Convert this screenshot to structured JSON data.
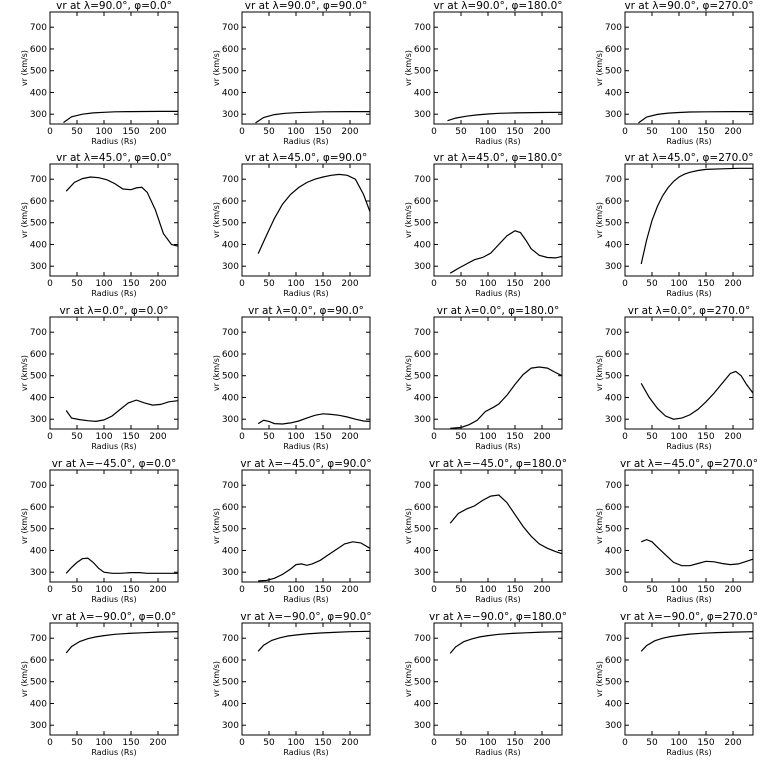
{
  "chart_data": [
    {
      "type": "line",
      "title": "vr at λ=90.0°, φ=0.0°",
      "xlabel": "Radius (Rs)",
      "ylabel": "vr (km/s)",
      "xlim": [
        0,
        237
      ],
      "ylim": [
        255,
        770
      ],
      "xticks": [
        0,
        50,
        100,
        150,
        200
      ],
      "yticks": [
        300,
        400,
        500,
        600,
        700
      ],
      "x": [
        25,
        40,
        60,
        80,
        100,
        120,
        150,
        200,
        237
      ],
      "y": [
        262,
        288,
        300,
        306,
        309,
        311,
        312,
        313,
        313
      ]
    },
    {
      "type": "line",
      "title": "vr at λ=90.0°, φ=90.0°",
      "xlabel": "Radius (Rs)",
      "ylabel": "vr (km/s)",
      "xlim": [
        0,
        237
      ],
      "ylim": [
        255,
        770
      ],
      "xticks": [
        0,
        50,
        100,
        150,
        200
      ],
      "yticks": [
        300,
        400,
        500,
        600,
        700
      ],
      "x": [
        25,
        40,
        60,
        80,
        100,
        120,
        150,
        200,
        237
      ],
      "y": [
        260,
        285,
        298,
        304,
        307,
        309,
        311,
        312,
        312
      ]
    },
    {
      "type": "line",
      "title": "vr at λ=90.0°, φ=180.0°",
      "xlabel": "Radius (Rs)",
      "ylabel": "vr (km/s)",
      "xlim": [
        0,
        237
      ],
      "ylim": [
        255,
        770
      ],
      "xticks": [
        0,
        50,
        100,
        150,
        200
      ],
      "yticks": [
        300,
        400,
        500,
        600,
        700
      ],
      "x": [
        25,
        40,
        60,
        80,
        100,
        120,
        150,
        200,
        237
      ],
      "y": [
        270,
        282,
        291,
        297,
        301,
        304,
        306,
        308,
        309
      ]
    },
    {
      "type": "line",
      "title": "vr at λ=90.0°, φ=270.0°",
      "xlabel": "Radius (Rs)",
      "ylabel": "vr (km/s)",
      "xlim": [
        0,
        237
      ],
      "ylim": [
        255,
        770
      ],
      "xticks": [
        0,
        50,
        100,
        150,
        200
      ],
      "yticks": [
        300,
        400,
        500,
        600,
        700
      ],
      "x": [
        25,
        40,
        60,
        80,
        100,
        120,
        150,
        200,
        237
      ],
      "y": [
        260,
        287,
        299,
        305,
        308,
        310,
        311,
        312,
        312
      ]
    },
    {
      "type": "line",
      "title": "vr at λ=45.0°, φ=0.0°",
      "xlabel": "Radius (Rs)",
      "ylabel": "vr (km/s)",
      "xlim": [
        0,
        237
      ],
      "ylim": [
        255,
        770
      ],
      "xticks": [
        0,
        50,
        100,
        150,
        200
      ],
      "yticks": [
        300,
        400,
        500,
        600,
        700
      ],
      "x": [
        30,
        45,
        60,
        75,
        90,
        105,
        120,
        135,
        150,
        160,
        170,
        180,
        195,
        210,
        225,
        237
      ],
      "y": [
        645,
        685,
        703,
        710,
        707,
        698,
        680,
        655,
        652,
        660,
        663,
        640,
        560,
        450,
        400,
        392
      ]
    },
    {
      "type": "line",
      "title": "vr at λ=45.0°, φ=90.0°",
      "xlabel": "Radius (Rs)",
      "ylabel": "vr (km/s)",
      "xlim": [
        0,
        237
      ],
      "ylim": [
        255,
        770
      ],
      "xticks": [
        0,
        50,
        100,
        150,
        200
      ],
      "yticks": [
        300,
        400,
        500,
        600,
        700
      ],
      "x": [
        30,
        45,
        60,
        75,
        90,
        105,
        120,
        135,
        150,
        165,
        180,
        195,
        210,
        225,
        237
      ],
      "y": [
        358,
        440,
        520,
        585,
        630,
        662,
        685,
        700,
        710,
        718,
        722,
        718,
        700,
        630,
        550
      ]
    },
    {
      "type": "line",
      "title": "vr at λ=45.0°, φ=180.0°",
      "xlabel": "Radius (Rs)",
      "ylabel": "vr (km/s)",
      "xlim": [
        0,
        237
      ],
      "ylim": [
        255,
        770
      ],
      "xticks": [
        0,
        50,
        100,
        150,
        200
      ],
      "yticks": [
        300,
        400,
        500,
        600,
        700
      ],
      "x": [
        30,
        45,
        60,
        75,
        90,
        105,
        120,
        135,
        150,
        160,
        170,
        180,
        195,
        210,
        225,
        237
      ],
      "y": [
        268,
        290,
        310,
        330,
        340,
        360,
        400,
        440,
        463,
        455,
        420,
        380,
        350,
        340,
        338,
        345
      ]
    },
    {
      "type": "line",
      "title": "vr at λ=45.0°, φ=270.0°",
      "xlabel": "Radius (Rs)",
      "ylabel": "vr (km/s)",
      "xlim": [
        0,
        237
      ],
      "ylim": [
        255,
        770
      ],
      "xticks": [
        0,
        50,
        100,
        150,
        200
      ],
      "yticks": [
        300,
        400,
        500,
        600,
        700
      ],
      "x": [
        30,
        40,
        50,
        60,
        70,
        80,
        90,
        100,
        110,
        120,
        135,
        150,
        180,
        210,
        237
      ],
      "y": [
        310,
        420,
        510,
        575,
        625,
        662,
        690,
        710,
        723,
        732,
        740,
        745,
        748,
        750,
        750
      ]
    },
    {
      "type": "line",
      "title": "vr at λ=0.0°, φ=0.0°",
      "xlabel": "Radius (Rs)",
      "ylabel": "vr (km/s)",
      "xlim": [
        0,
        237
      ],
      "ylim": [
        255,
        770
      ],
      "xticks": [
        0,
        50,
        100,
        150,
        200
      ],
      "yticks": [
        300,
        400,
        500,
        600,
        700
      ],
      "x": [
        30,
        40,
        55,
        70,
        85,
        100,
        115,
        130,
        145,
        160,
        175,
        190,
        205,
        220,
        237
      ],
      "y": [
        340,
        305,
        298,
        293,
        290,
        297,
        315,
        345,
        375,
        388,
        375,
        365,
        368,
        380,
        385
      ]
    },
    {
      "type": "line",
      "title": "vr at λ=0.0°, φ=90.0°",
      "xlabel": "Radius (Rs)",
      "ylabel": "vr (km/s)",
      "xlim": [
        0,
        237
      ],
      "ylim": [
        255,
        770
      ],
      "xticks": [
        0,
        50,
        100,
        150,
        200
      ],
      "yticks": [
        300,
        400,
        500,
        600,
        700
      ],
      "x": [
        30,
        40,
        50,
        60,
        75,
        90,
        105,
        120,
        135,
        150,
        165,
        180,
        195,
        210,
        225,
        237
      ],
      "y": [
        280,
        295,
        290,
        280,
        278,
        283,
        292,
        305,
        318,
        325,
        322,
        318,
        310,
        300,
        292,
        290
      ]
    },
    {
      "type": "line",
      "title": "vr at λ=0.0°, φ=180.0°",
      "xlabel": "Radius (Rs)",
      "ylabel": "vr (km/s)",
      "xlim": [
        0,
        237
      ],
      "ylim": [
        255,
        770
      ],
      "xticks": [
        0,
        50,
        100,
        150,
        200
      ],
      "yticks": [
        300,
        400,
        500,
        600,
        700
      ],
      "x": [
        30,
        50,
        65,
        80,
        95,
        110,
        120,
        135,
        150,
        165,
        180,
        195,
        210,
        225,
        237
      ],
      "y": [
        258,
        262,
        275,
        295,
        335,
        355,
        370,
        410,
        460,
        505,
        535,
        540,
        535,
        515,
        500
      ]
    },
    {
      "type": "line",
      "title": "vr at λ=0.0°, φ=270.0°",
      "xlabel": "Radius (Rs)",
      "ylabel": "vr (km/s)",
      "xlim": [
        0,
        237
      ],
      "ylim": [
        255,
        770
      ],
      "xticks": [
        0,
        50,
        100,
        150,
        200
      ],
      "yticks": [
        300,
        400,
        500,
        600,
        700
      ],
      "x": [
        30,
        45,
        60,
        75,
        90,
        105,
        120,
        135,
        150,
        165,
        180,
        195,
        205,
        215,
        225,
        237
      ],
      "y": [
        465,
        400,
        350,
        315,
        300,
        305,
        320,
        345,
        380,
        420,
        465,
        510,
        520,
        500,
        460,
        420
      ]
    },
    {
      "type": "line",
      "title": "vr at λ=−45.0°, φ=0.0°",
      "xlabel": "Radius (Rs)",
      "ylabel": "vr (km/s)",
      "xlim": [
        0,
        237
      ],
      "ylim": [
        255,
        770
      ],
      "xticks": [
        0,
        50,
        100,
        150,
        200
      ],
      "yticks": [
        300,
        400,
        500,
        600,
        700
      ],
      "x": [
        30,
        40,
        50,
        60,
        70,
        80,
        90,
        100,
        115,
        130,
        150,
        165,
        180,
        200,
        220,
        237
      ],
      "y": [
        295,
        322,
        345,
        362,
        365,
        345,
        318,
        300,
        295,
        295,
        298,
        298,
        295,
        295,
        295,
        295
      ]
    },
    {
      "type": "line",
      "title": "vr at λ=−45.0°, φ=90.0°",
      "xlabel": "Radius (Rs)",
      "ylabel": "vr (km/s)",
      "xlim": [
        0,
        237
      ],
      "ylim": [
        255,
        770
      ],
      "xticks": [
        0,
        50,
        100,
        150,
        200
      ],
      "yticks": [
        300,
        400,
        500,
        600,
        700
      ],
      "x": [
        30,
        45,
        60,
        75,
        90,
        100,
        110,
        120,
        130,
        145,
        160,
        175,
        190,
        205,
        220,
        237
      ],
      "y": [
        260,
        262,
        272,
        290,
        315,
        335,
        338,
        332,
        338,
        355,
        380,
        405,
        430,
        440,
        435,
        410
      ]
    },
    {
      "type": "line",
      "title": "vr at λ=−45.0°, φ=180.0°",
      "xlabel": "Radius (Rs)",
      "ylabel": "vr (km/s)",
      "xlim": [
        0,
        237
      ],
      "ylim": [
        255,
        770
      ],
      "xticks": [
        0,
        50,
        100,
        150,
        200
      ],
      "yticks": [
        300,
        400,
        500,
        600,
        700
      ],
      "x": [
        30,
        45,
        60,
        75,
        90,
        105,
        120,
        135,
        150,
        165,
        180,
        195,
        210,
        225,
        237
      ],
      "y": [
        525,
        570,
        590,
        605,
        630,
        650,
        655,
        620,
        565,
        510,
        465,
        430,
        410,
        395,
        385
      ]
    },
    {
      "type": "line",
      "title": "vr at λ=−45.0°, φ=270.0°",
      "xlabel": "Radius (Rs)",
      "ylabel": "vr (km/s)",
      "xlim": [
        0,
        237
      ],
      "ylim": [
        255,
        770
      ],
      "xticks": [
        0,
        50,
        100,
        150,
        200
      ],
      "yticks": [
        300,
        400,
        500,
        600,
        700
      ],
      "x": [
        30,
        40,
        50,
        60,
        75,
        90,
        105,
        120,
        135,
        150,
        165,
        180,
        195,
        210,
        225,
        237
      ],
      "y": [
        440,
        450,
        440,
        415,
        380,
        345,
        330,
        330,
        340,
        350,
        348,
        340,
        335,
        338,
        350,
        360
      ]
    },
    {
      "type": "line",
      "title": "vr at λ=−90.0°, φ=0.0°",
      "xlabel": "Radius (Rs)",
      "ylabel": "vr (km/s)",
      "xlim": [
        0,
        237
      ],
      "ylim": [
        255,
        770
      ],
      "xticks": [
        0,
        50,
        100,
        150,
        200
      ],
      "yticks": [
        300,
        400,
        500,
        600,
        700
      ],
      "x": [
        30,
        40,
        55,
        70,
        85,
        100,
        120,
        145,
        170,
        200,
        237
      ],
      "y": [
        632,
        662,
        685,
        698,
        706,
        712,
        718,
        722,
        725,
        728,
        730
      ]
    },
    {
      "type": "line",
      "title": "vr at λ=−90.0°, φ=90.0°",
      "xlabel": "Radius (Rs)",
      "ylabel": "vr (km/s)",
      "xlim": [
        0,
        237
      ],
      "ylim": [
        255,
        770
      ],
      "xticks": [
        0,
        50,
        100,
        150,
        200
      ],
      "yticks": [
        300,
        400,
        500,
        600,
        700
      ],
      "x": [
        30,
        40,
        55,
        70,
        85,
        100,
        120,
        145,
        170,
        200,
        237
      ],
      "y": [
        640,
        668,
        690,
        702,
        710,
        715,
        720,
        724,
        727,
        730,
        732
      ]
    },
    {
      "type": "line",
      "title": "vr at λ=−90.0°, φ=180.0°",
      "xlabel": "Radius (Rs)",
      "ylabel": "vr (km/s)",
      "xlim": [
        0,
        237
      ],
      "ylim": [
        255,
        770
      ],
      "xticks": [
        0,
        50,
        100,
        150,
        200
      ],
      "yticks": [
        300,
        400,
        500,
        600,
        700
      ],
      "x": [
        30,
        40,
        55,
        70,
        85,
        100,
        120,
        145,
        170,
        200,
        237
      ],
      "y": [
        630,
        660,
        684,
        697,
        706,
        712,
        718,
        722,
        725,
        728,
        730
      ]
    },
    {
      "type": "line",
      "title": "vr at λ=−90.0°, φ=270.0°",
      "xlabel": "Radius (Rs)",
      "ylabel": "vr (km/s)",
      "xlim": [
        0,
        237
      ],
      "ylim": [
        255,
        770
      ],
      "xticks": [
        0,
        50,
        100,
        150,
        200
      ],
      "yticks": [
        300,
        400,
        500,
        600,
        700
      ],
      "x": [
        30,
        40,
        55,
        70,
        85,
        100,
        120,
        145,
        170,
        200,
        237
      ],
      "y": [
        640,
        666,
        688,
        700,
        708,
        713,
        719,
        723,
        726,
        728,
        730
      ]
    }
  ]
}
